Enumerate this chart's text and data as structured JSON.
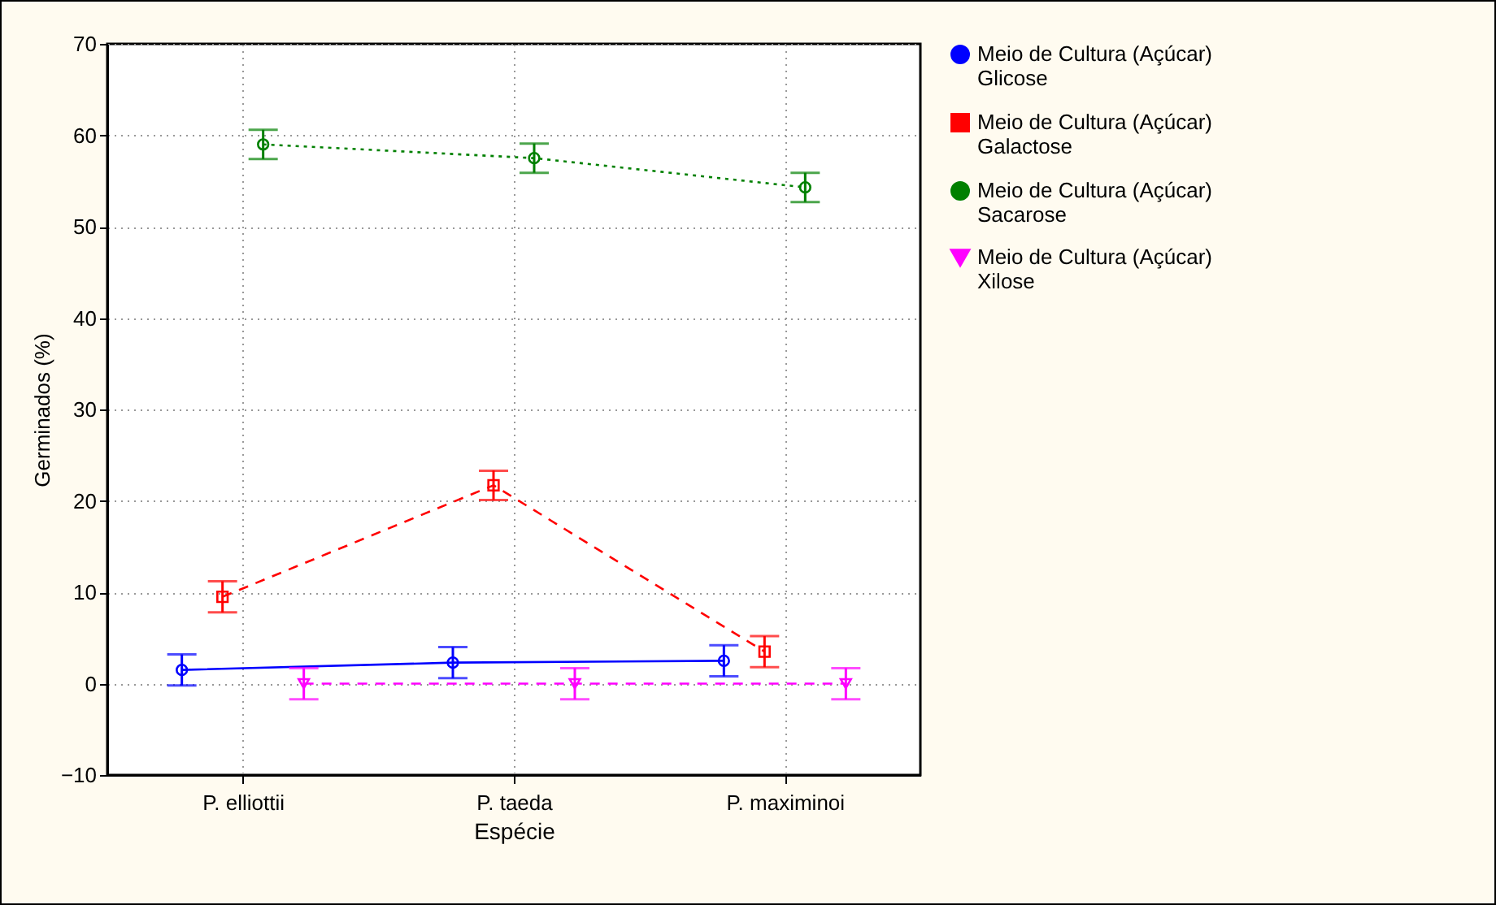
{
  "chart_data": {
    "type": "line",
    "xlabel": "Espécie",
    "ylabel": "Germinados (%)",
    "categories": [
      "P. elliottii",
      "P. taeda",
      "P. maximinoi"
    ],
    "series": [
      {
        "name": "Meio de Cultura (Açúcar) Glicose",
        "color": "#0000ff",
        "marker": "circle",
        "line_style": "solid",
        "values": [
          1.5,
          2.3,
          2.5
        ],
        "errors": [
          1.7,
          1.7,
          1.7
        ]
      },
      {
        "name": "Meio de Cultura (Açúcar) Galactose",
        "color": "#ff0000",
        "marker": "square",
        "line_style": "dashed",
        "values": [
          9.5,
          21.7,
          3.5
        ],
        "errors": [
          1.7,
          1.6,
          1.7
        ]
      },
      {
        "name": "Meio de Cultura (Açúcar) Sacarose",
        "color": "#008000",
        "marker": "circle",
        "line_style": "dotted",
        "values": [
          59,
          57.5,
          54.3
        ],
        "errors": [
          1.6,
          1.6,
          1.6
        ]
      },
      {
        "name": "Meio de Cultura (Açúcar) Xilose",
        "color": "#ff00ff",
        "marker": "triangle",
        "line_style": "dashed",
        "values": [
          0,
          0,
          0
        ],
        "errors": [
          1.7,
          1.7,
          1.7
        ]
      }
    ],
    "ylim": [
      -10,
      70
    ],
    "yticks": [
      -10,
      0,
      10,
      20,
      30,
      40,
      50,
      60,
      70
    ],
    "grid": true,
    "legend": "right"
  }
}
